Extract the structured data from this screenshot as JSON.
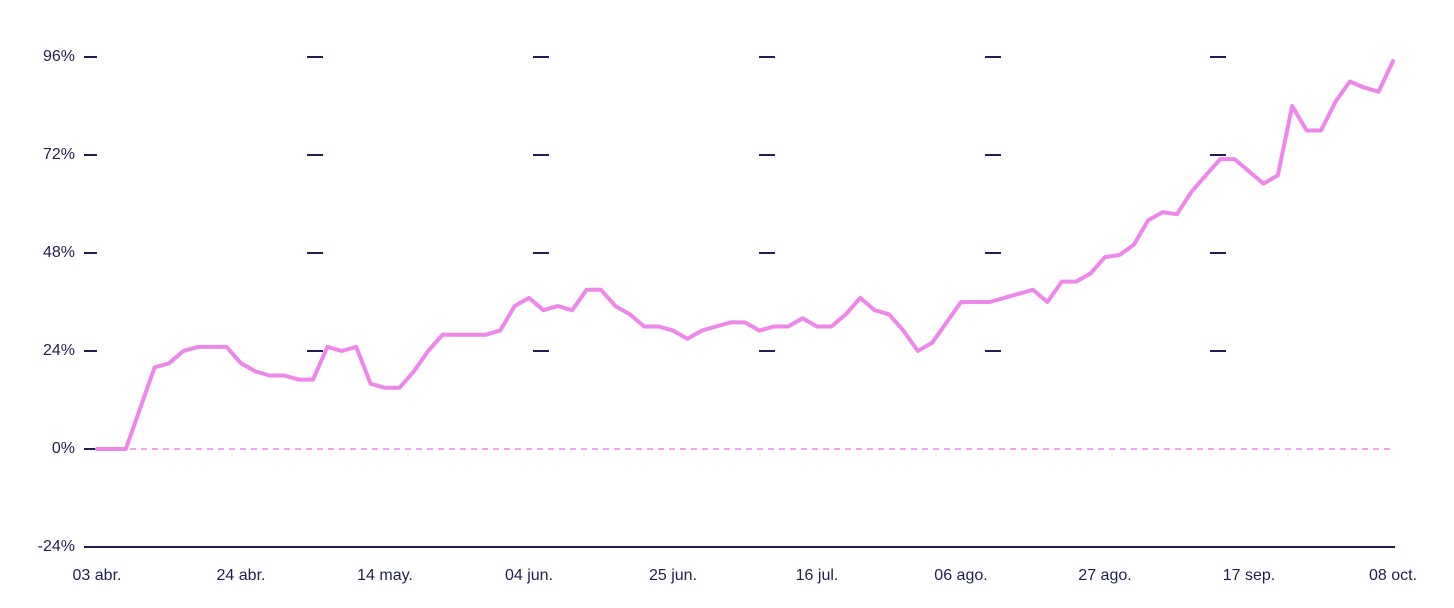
{
  "chart_data": {
    "type": "line",
    "categories": [
      "03 abr.",
      null,
      null,
      null,
      null,
      null,
      null,
      null,
      null,
      null,
      "24 abr.",
      null,
      null,
      null,
      null,
      null,
      null,
      null,
      null,
      null,
      "14 may.",
      null,
      null,
      null,
      null,
      null,
      null,
      null,
      null,
      null,
      "04 jun.",
      null,
      null,
      null,
      null,
      null,
      null,
      null,
      null,
      null,
      "25 jun.",
      null,
      null,
      null,
      null,
      null,
      null,
      null,
      null,
      null,
      "16 jul.",
      null,
      null,
      null,
      null,
      null,
      null,
      null,
      null,
      null,
      "06 ago.",
      null,
      null,
      null,
      null,
      null,
      null,
      null,
      null,
      null,
      "27 ago.",
      null,
      null,
      null,
      null,
      null,
      null,
      null,
      null,
      null,
      "17 sep.",
      null,
      null,
      null,
      null,
      null,
      null,
      null,
      null,
      null,
      "08 oct."
    ],
    "values": [
      0,
      0,
      0,
      10,
      20,
      21,
      24,
      25,
      25,
      25,
      21,
      19,
      18,
      18,
      17,
      17,
      25,
      24,
      25,
      16,
      15,
      15,
      19,
      24,
      28,
      28,
      28,
      28,
      29,
      35,
      37,
      34,
      35,
      34,
      39,
      39,
      35,
      33,
      30,
      30,
      29,
      27,
      29,
      30,
      31,
      31,
      29,
      30,
      30,
      32,
      30,
      30,
      33,
      37,
      34,
      33,
      29,
      24,
      26,
      31,
      36,
      36,
      36,
      37,
      38,
      39,
      36,
      41,
      41,
      43,
      47,
      47.5,
      50,
      56,
      58,
      57.5,
      63,
      67,
      71,
      71,
      68,
      65,
      67,
      84,
      78,
      78,
      85,
      90,
      88.5,
      87.5,
      95
    ],
    "color": "#ef86ea",
    "ylim": [
      -24,
      96
    ],
    "yticks": [
      {
        "value": -24,
        "label": "-24%"
      },
      {
        "value": 0,
        "label": "0%"
      },
      {
        "value": 24,
        "label": "24%"
      },
      {
        "value": 48,
        "label": "48%"
      },
      {
        "value": 72,
        "label": "72%"
      },
      {
        "value": 96,
        "label": "96%"
      }
    ],
    "grid": true
  }
}
